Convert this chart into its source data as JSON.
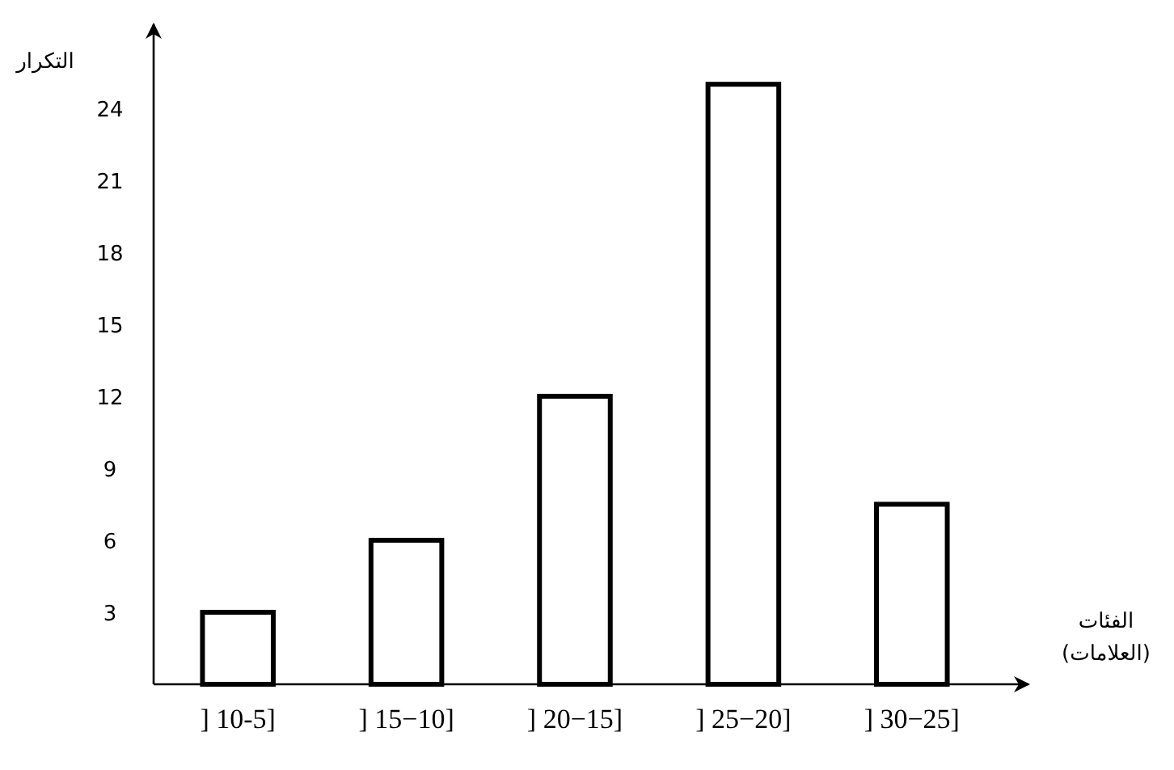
{
  "chart_data": {
    "type": "bar",
    "ylabel": "التكرار",
    "xlabel": "الفئات\n(العلامات)",
    "categories": [
      "] 10-5]",
      "] 15−10]",
      "] 20−15]",
      "] 25−20]",
      "] 30−25]"
    ],
    "values": [
      3,
      6,
      12,
      25,
      7.5
    ],
    "color": "#000000",
    "ylim": [
      0,
      27.5
    ],
    "yticks": [
      3,
      6,
      9,
      12,
      15,
      18,
      21,
      24
    ]
  }
}
